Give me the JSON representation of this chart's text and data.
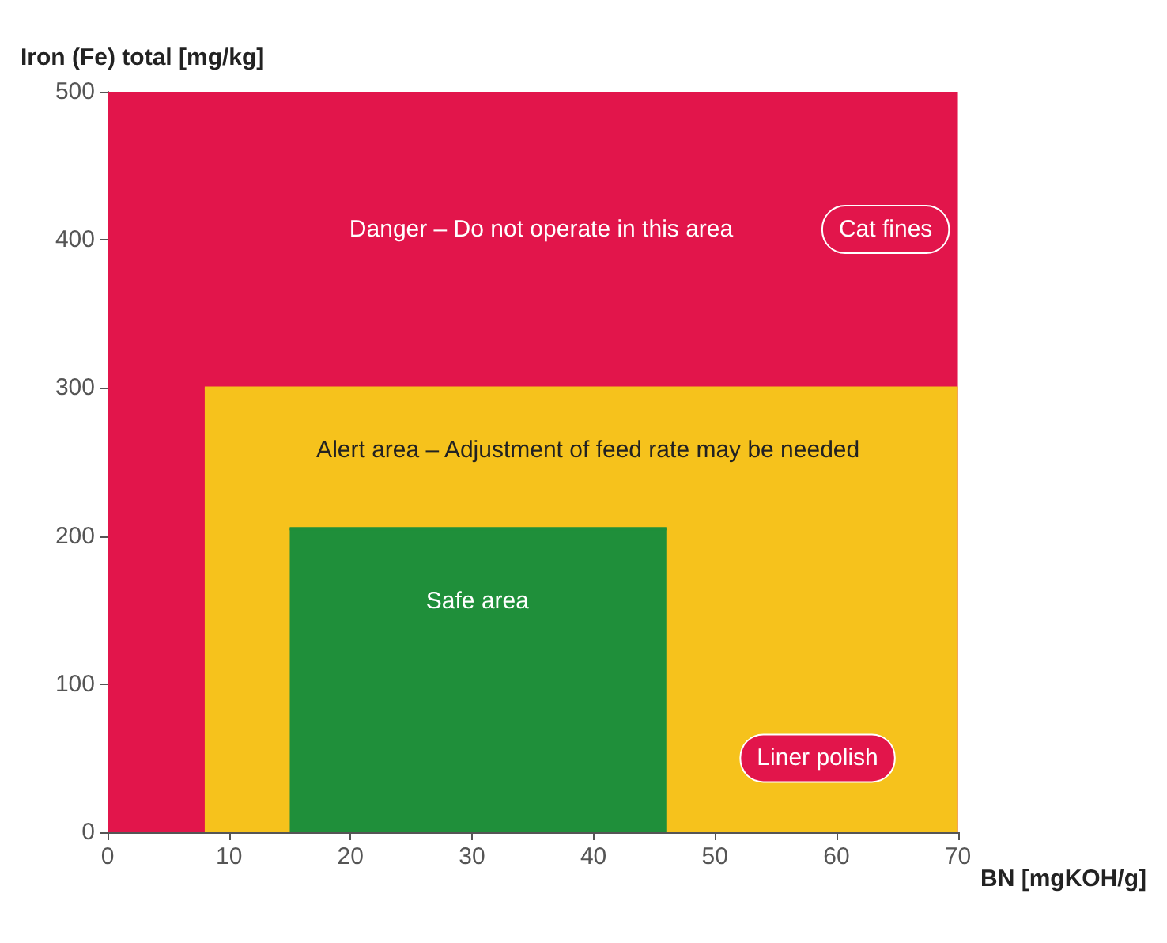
{
  "chart_data": {
    "type": "area",
    "xlabel": "BN [mgKOH/g]",
    "ylabel": "Iron (Fe) total [mg/kg]",
    "xlim": [
      0,
      70
    ],
    "xticks": [
      0,
      10,
      20,
      30,
      40,
      50,
      60,
      70
    ],
    "ylim": [
      0,
      500
    ],
    "yticks": [
      0,
      100,
      200,
      300,
      400,
      500
    ],
    "x": [
      8,
      15,
      46,
      70
    ],
    "bands": [
      {
        "axis": "x",
        "from": 0,
        "to": 70,
        "color": "#e2154b"
      }
    ],
    "series": [
      {
        "color": "#f6c21c",
        "values": [
          300,
          300,
          300,
          300
        ]
      },
      {
        "color": "#1f8f3a",
        "values": [
          null,
          205,
          205,
          null
        ]
      }
    ],
    "annotations": [
      "Danger – Do not operate in this area",
      "Cat fines",
      "Alert area – Adjustment of feed rate may be needed",
      "Safe area",
      "Liner polish"
    ]
  }
}
